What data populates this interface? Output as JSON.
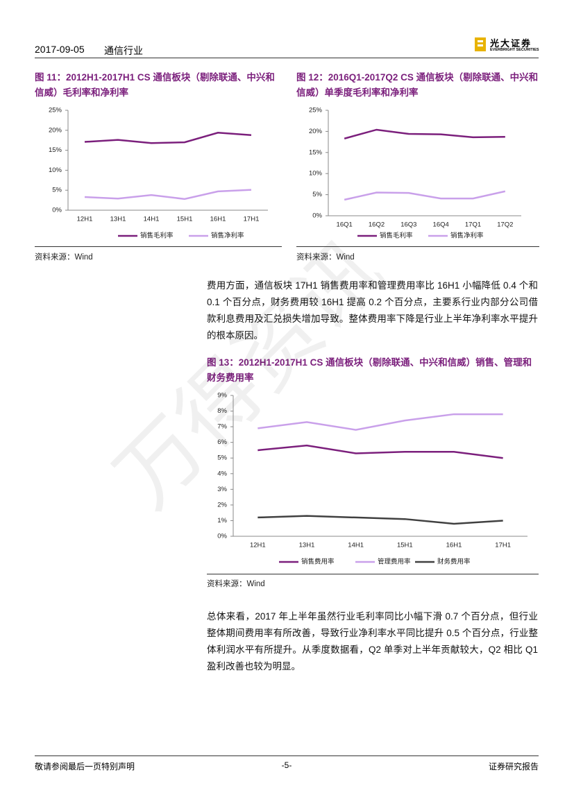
{
  "header": {
    "date": "2017-09-05",
    "industry": "通信行业",
    "logo_cn": "光大证券",
    "logo_en": "EVERBRIGHT SECURITIES"
  },
  "watermark": "万得资讯",
  "figures": [
    {
      "title": "图 11：2012H1-2017H1 CS 通信板块（剔除联通、中兴和信威）毛利率和净利率",
      "source": "资料来源：Wind",
      "chart": {
        "type": "line",
        "categories": [
          "12H1",
          "13H1",
          "14H1",
          "15H1",
          "16H1",
          "17H1"
        ],
        "series": [
          {
            "name": "销售毛利率",
            "color": "#7b1f7c",
            "values": [
              17.1,
              17.6,
              16.8,
              17.0,
              19.4,
              18.8
            ]
          },
          {
            "name": "销售净利率",
            "color": "#c9a0ea",
            "values": [
              3.3,
              2.9,
              3.8,
              2.8,
              4.7,
              5.1
            ]
          }
        ],
        "ylim": [
          0,
          25
        ],
        "yticks": [
          {
            "value": 0,
            "label": "0%"
          },
          {
            "value": 5,
            "label": "5%"
          },
          {
            "value": 10,
            "label": "10%"
          },
          {
            "value": 15,
            "label": "15%"
          },
          {
            "value": 20,
            "label": "20%"
          },
          {
            "value": 25,
            "label": "25%"
          }
        ]
      }
    },
    {
      "title": "图 12：2016Q1-2017Q2 CS 通信板块（剔除联通、中兴和信威）单季度毛利率和净利率",
      "source": "资料来源：Wind",
      "chart": {
        "type": "line",
        "categories": [
          "16Q1",
          "16Q2",
          "16Q3",
          "16Q4",
          "17Q1",
          "17Q2"
        ],
        "series": [
          {
            "name": "销售毛利率",
            "color": "#7b1f7c",
            "values": [
              18.3,
              20.4,
              19.4,
              19.3,
              18.6,
              18.7
            ]
          },
          {
            "name": "销售净利率",
            "color": "#c9a0ea",
            "values": [
              3.8,
              5.5,
              5.4,
              4.1,
              4.1,
              5.8
            ]
          }
        ],
        "ylim": [
          0,
          25
        ],
        "yticks": [
          {
            "value": 0,
            "label": "0%"
          },
          {
            "value": 5,
            "label": "5%"
          },
          {
            "value": 10,
            "label": "10%"
          },
          {
            "value": 15,
            "label": "15%"
          },
          {
            "value": 20,
            "label": "20%"
          },
          {
            "value": 25,
            "label": "25%"
          }
        ]
      }
    },
    {
      "title": "图 13：2012H1-2017H1 CS 通信板块（剔除联通、中兴和信威）销售、管理和财务费用率",
      "source": "资料来源：Wind",
      "chart": {
        "type": "line",
        "categories": [
          "12H1",
          "13H1",
          "14H1",
          "15H1",
          "16H1",
          "17H1"
        ],
        "series": [
          {
            "name": "销售费用率",
            "color": "#7b1f7c",
            "values": [
              5.5,
              5.8,
              5.3,
              5.4,
              5.4,
              5.0
            ]
          },
          {
            "name": "管理费用率",
            "color": "#c9a0ea",
            "values": [
              6.9,
              7.3,
              6.8,
              7.4,
              7.8,
              7.8
            ]
          },
          {
            "name": "财务费用率",
            "color": "#404040",
            "values": [
              1.2,
              1.3,
              1.2,
              1.1,
              0.8,
              1.0
            ]
          }
        ],
        "ylim": [
          0,
          9
        ],
        "yticks": [
          {
            "value": 0,
            "label": "0%"
          },
          {
            "value": 1,
            "label": "1%"
          },
          {
            "value": 2,
            "label": "2%"
          },
          {
            "value": 3,
            "label": "3%"
          },
          {
            "value": 4,
            "label": "4%"
          },
          {
            "value": 5,
            "label": "5%"
          },
          {
            "value": 6,
            "label": "6%"
          },
          {
            "value": 7,
            "label": "7%"
          },
          {
            "value": 8,
            "label": "8%"
          },
          {
            "value": 9,
            "label": "9%"
          }
        ]
      }
    }
  ],
  "paragraphs": [
    "费用方面，通信板块 17H1 销售费用率和管理费用率比 16H1 小幅降低 0.4 个和 0.1 个百分点，财务费用较 16H1 提高 0.2 个百分点，主要系行业内部分公司借款利息费用及汇兑损失增加导致。整体费用率下降是行业上半年净利率水平提升的根本原因。",
    "总体来看，2017 年上半年虽然行业毛利率同比小幅下滑 0.7 个百分点，但行业整体期间费用率有所改善，导致行业净利率水平同比提升 0.5 个百分点，行业整体利润水平有所提升。从季度数据看，Q2 单季对上半年贡献较大，Q2 相比 Q1 盈利改善也较为明显。"
  ],
  "footer": {
    "left": "敬请参阅最后一页特别声明",
    "page": "-5-",
    "right": "证券研究报告"
  }
}
